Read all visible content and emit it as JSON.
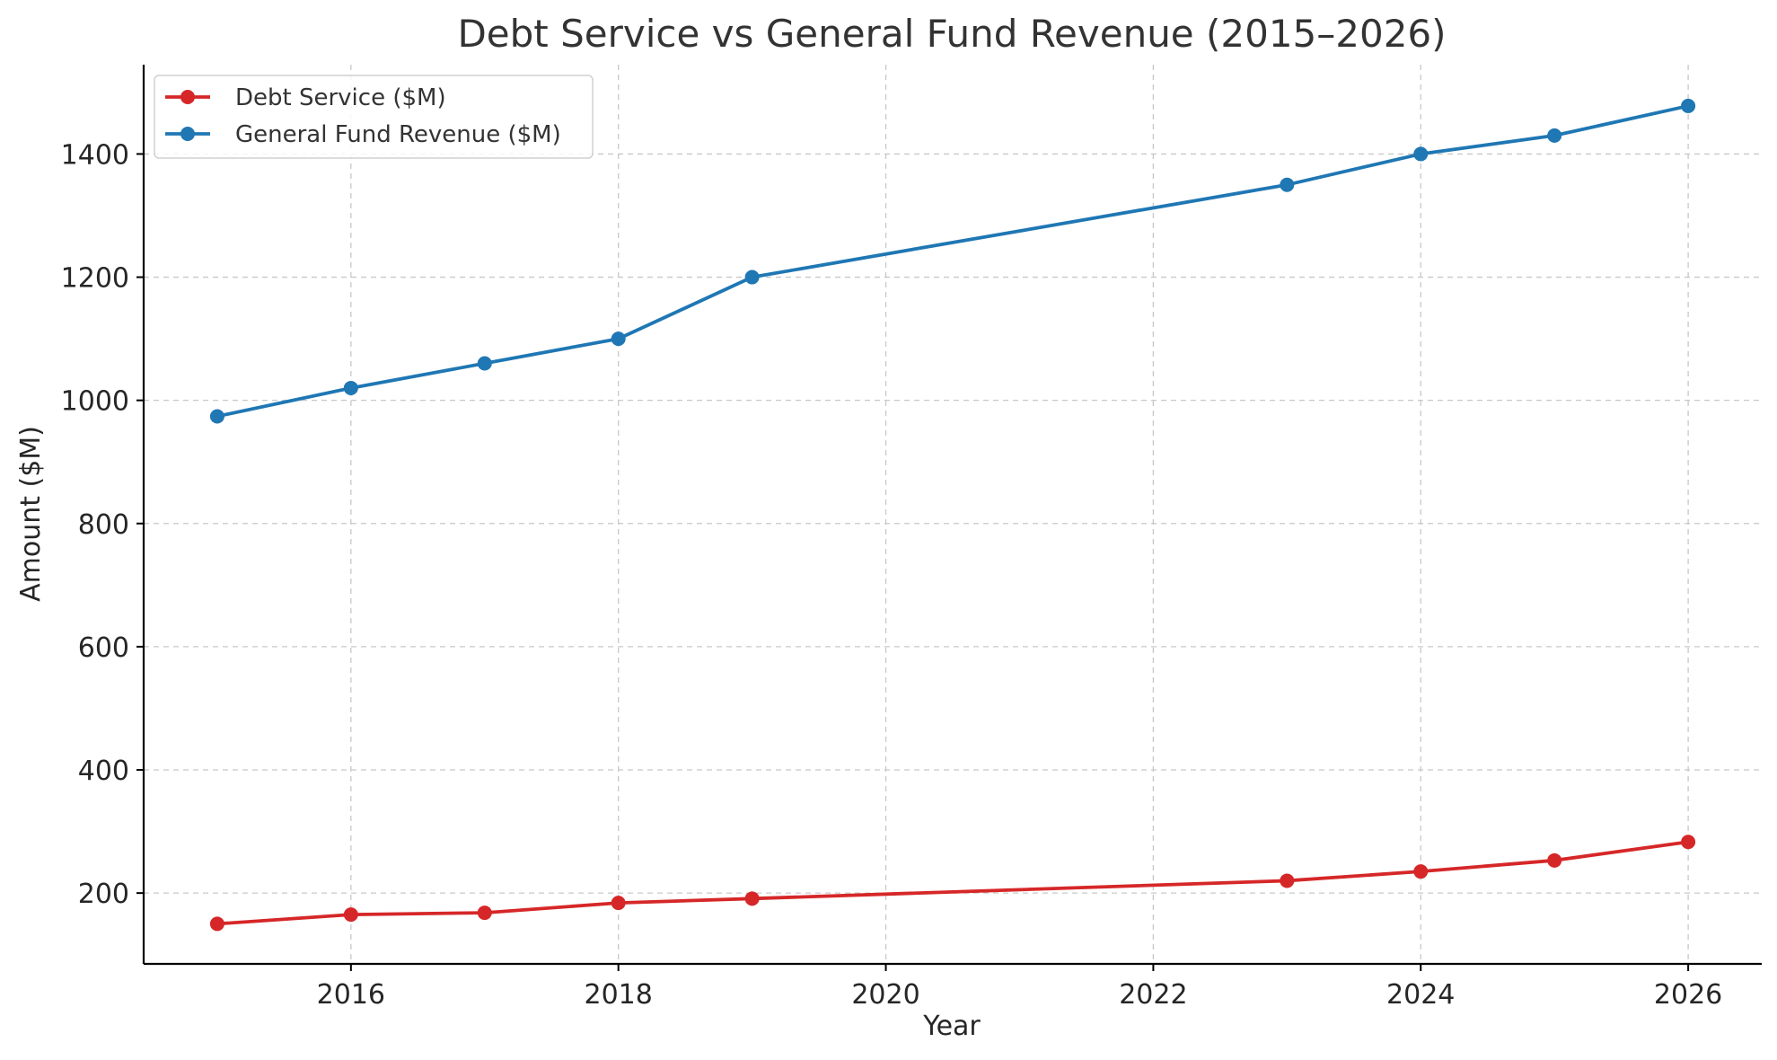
{
  "chart_data": {
    "type": "line",
    "title": "Debt Service vs General Fund Revenue (2015–2026)",
    "xlabel": "Year",
    "ylabel": "Amount ($M)",
    "xlim": [
      2014.45,
      2026.55
    ],
    "ylim": [
      85,
      1545
    ],
    "x_ticks": [
      2016,
      2018,
      2020,
      2022,
      2024,
      2026
    ],
    "y_ticks": [
      200,
      400,
      600,
      800,
      1000,
      1200,
      1400
    ],
    "grid": true,
    "legend_position": "upper-left",
    "x": [
      2015,
      2016,
      2017,
      2018,
      2019,
      2023,
      2024,
      2025,
      2026
    ],
    "series": [
      {
        "name": "Debt Service ($M)",
        "color": "#d62728",
        "values": [
          150,
          165,
          168,
          184,
          191,
          220,
          235,
          253,
          283
        ]
      },
      {
        "name": "General Fund Revenue ($M)",
        "color": "#1f77b4",
        "values": [
          974,
          1020,
          1060,
          1100,
          1200,
          1350,
          1400,
          1430,
          1478
        ]
      }
    ]
  }
}
